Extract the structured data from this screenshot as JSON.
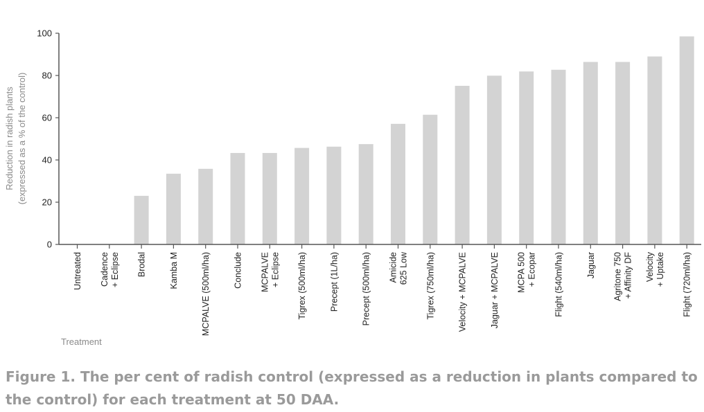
{
  "chart_data": {
    "type": "bar",
    "title": "",
    "xlabel": "Treatment",
    "ylabel_lines": [
      "Reduction in radish plants",
      "(expressed as a % of the control)"
    ],
    "ylim": [
      0,
      100
    ],
    "yticks": [
      "0",
      "20",
      "40",
      "60",
      "80",
      "100"
    ],
    "categories": [
      [
        "Untreated"
      ],
      [
        "Cadence",
        "+ Eclipse"
      ],
      [
        "Brodal"
      ],
      [
        "Kamba M"
      ],
      [
        "MCPALVE (500ml/ha)"
      ],
      [
        "Conclude"
      ],
      [
        "MCPALVE",
        "+ Eclipse"
      ],
      [
        "Tigrex (500ml/ha)"
      ],
      [
        "Precept (1L/ha)"
      ],
      [
        "Precept (500ml/ha)"
      ],
      [
        "Amicide",
        "625 Low"
      ],
      [
        "Tigrex (750ml/ha)"
      ],
      [
        "Velocity + MCPALVE"
      ],
      [
        "Jaguar + MCPALVE"
      ],
      [
        "MCPA 500",
        "+ Ecopar"
      ],
      [
        "Flight (540ml/ha)"
      ],
      [
        "Jaguar"
      ],
      [
        "Agritone 750",
        "+ Affinity DF"
      ],
      [
        "Velocity",
        "+ Uptake"
      ],
      [
        "Flight (720ml/ha)"
      ]
    ],
    "values": [
      0,
      0,
      23,
      33.5,
      35.8,
      43.3,
      43.3,
      45.7,
      46.3,
      47.5,
      57.1,
      61.4,
      75.1,
      79.9,
      81.9,
      82.7,
      86.4,
      86.4,
      89,
      98.5
    ],
    "bar_color": "#d3d3d3",
    "axis_color": "#555555"
  },
  "caption": "Figure 1. The per cent of radish control (expressed as a reduction in plants compared to the control) for each treatment at 50 DAA."
}
